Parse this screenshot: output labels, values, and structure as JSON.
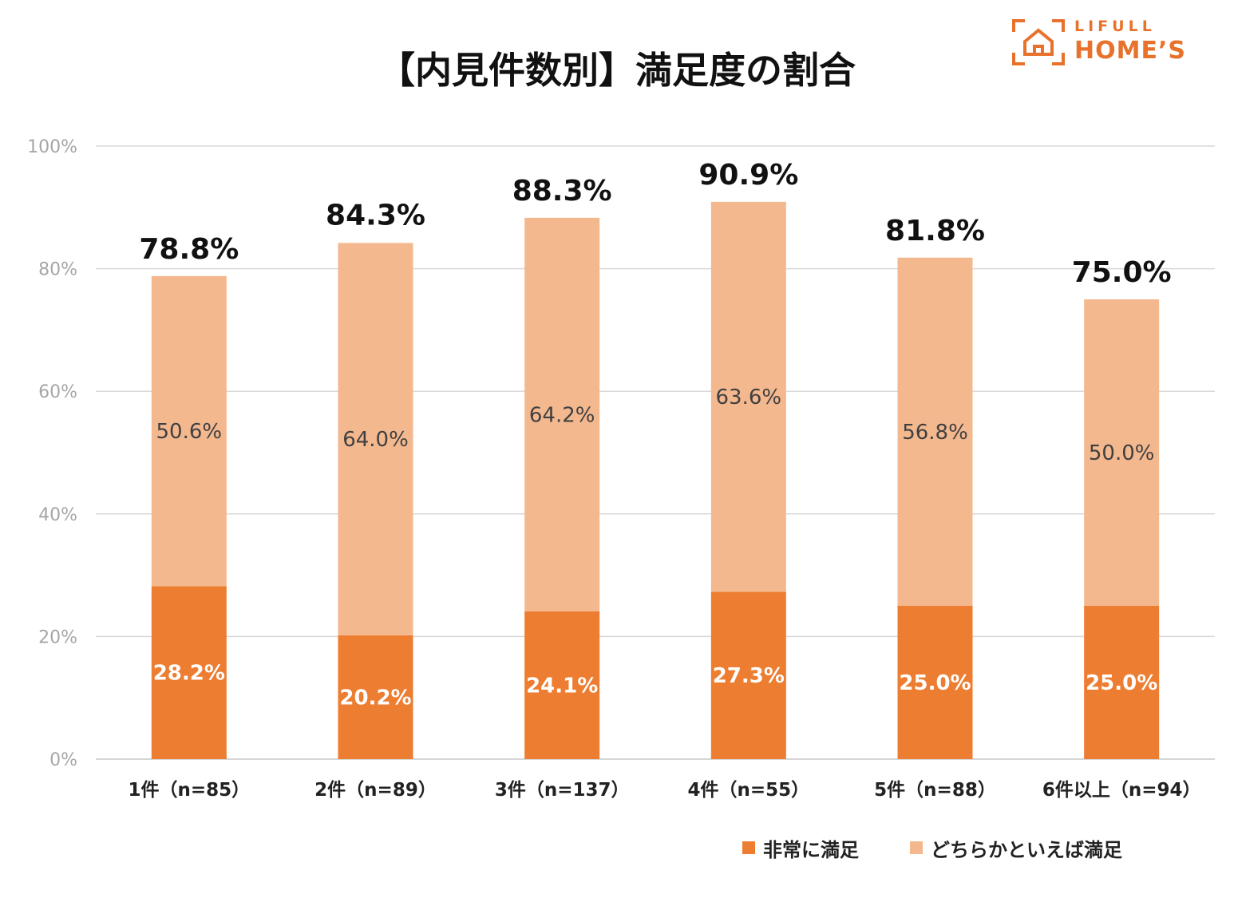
{
  "title": "【内見件数別】満足度の割合",
  "logo": {
    "top": "LIFULL",
    "bottom": "HOME’S",
    "icon": "house-frame-icon",
    "color": "#e8722c"
  },
  "chart_data": {
    "type": "bar",
    "stacked": true,
    "title": "【内見件数別】満足度の割合",
    "categories": [
      "1件（n=85）",
      "2件（n=89）",
      "3件（n=137）",
      "4件（n=55）",
      "5件（n=88）",
      "6件以上（n=94）"
    ],
    "series": [
      {
        "name": "非常に満足",
        "color": "#ed7d31",
        "values": [
          28.2,
          20.2,
          24.1,
          27.3,
          25.0,
          25.0
        ],
        "labels": [
          "28.2%",
          "20.2%",
          "24.1%",
          "27.3%",
          "25.0%",
          "25.0%"
        ]
      },
      {
        "name": "どちらかといえば満足",
        "color": "#f4b88f",
        "values": [
          50.6,
          64.0,
          64.2,
          63.6,
          56.8,
          50.0
        ],
        "labels": [
          "50.6%",
          "64.0%",
          "64.2%",
          "63.6%",
          "56.8%",
          "50.0%"
        ]
      }
    ],
    "totals": [
      78.8,
      84.3,
      88.3,
      90.9,
      81.8,
      75.0
    ],
    "total_labels": [
      "78.8%",
      "84.3%",
      "88.3%",
      "90.9%",
      "81.8%",
      "75.0%"
    ],
    "ylim": [
      0,
      100
    ],
    "yticks": [
      0,
      20,
      40,
      60,
      80,
      100
    ],
    "ytick_labels": [
      "0%",
      "20%",
      "40%",
      "60%",
      "80%",
      "100%"
    ],
    "xlabel": "",
    "ylabel": "",
    "grid": true,
    "legend_position": "bottom-right"
  }
}
